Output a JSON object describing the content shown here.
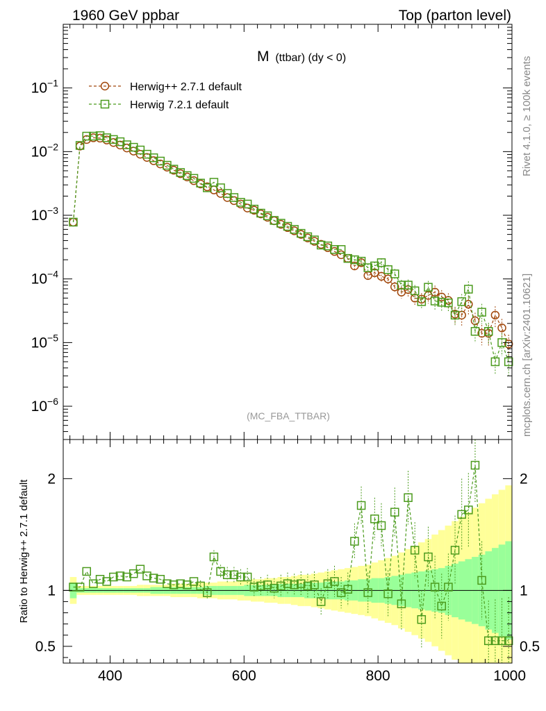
{
  "header": {
    "left": "1960 GeV ppbar",
    "right": "Top (parton level)"
  },
  "side": {
    "rivet": "Rivet 4.1.0, ≥ 100k events",
    "mcplots": "mcplots.cern.ch [arXiv:2401.10621]"
  },
  "chart_data": {
    "type": "line",
    "title_main": "M",
    "title_sub": "(ttbar) (dy < 0)",
    "analysis": "(MC_FBA_TTBAR)",
    "upper": {
      "yscale": "log",
      "ylim": [
        3e-07,
        1
      ],
      "xlim": [
        330,
        1000
      ],
      "ytick_labels": [
        {
          "base": "10",
          "exp": "−6",
          "value": 1e-06
        },
        {
          "base": "10",
          "exp": "−5",
          "value": 1e-05
        },
        {
          "base": "10",
          "exp": "−4",
          "value": 0.0001
        },
        {
          "base": "10",
          "exp": "−3",
          "value": 0.001
        },
        {
          "base": "10",
          "exp": "−2",
          "value": 0.01
        },
        {
          "base": "10",
          "exp": "−1",
          "value": 0.1
        }
      ],
      "series": [
        {
          "name": "Herwig++ 2.7.1 default",
          "color": "#a0460a",
          "marker": "circle",
          "x": [
            345,
            355,
            365,
            375,
            385,
            395,
            405,
            415,
            425,
            435,
            445,
            455,
            465,
            475,
            485,
            495,
            505,
            515,
            525,
            535,
            545,
            555,
            565,
            575,
            585,
            595,
            605,
            615,
            625,
            635,
            645,
            655,
            665,
            675,
            685,
            695,
            705,
            715,
            725,
            735,
            745,
            755,
            765,
            775,
            785,
            795,
            805,
            815,
            825,
            835,
            845,
            855,
            865,
            875,
            885,
            895,
            905,
            915,
            925,
            935,
            945,
            955,
            965,
            975,
            985,
            995
          ],
          "y": [
            0.00078,
            0.0122,
            0.0155,
            0.0165,
            0.0163,
            0.0152,
            0.0139,
            0.0127,
            0.0114,
            0.0102,
            0.0091,
            0.0081,
            0.0072,
            0.0064,
            0.0057,
            0.0051,
            0.0045,
            0.004,
            0.0035,
            0.0031,
            0.0028,
            0.0025,
            0.0022,
            0.0019,
            0.0017,
            0.0015,
            0.0013,
            0.0012,
            0.00105,
            0.00093,
            0.00082,
            0.00072,
            0.00064,
            0.00057,
            0.0005,
            0.00044,
            0.00039,
            0.00035,
            0.00031,
            0.00027,
            0.00024,
            0.00021,
            0.00016,
            0.00018,
            0.000113,
            0.000125,
            0.00011,
            0.0001,
            7.5e-05,
            6.2e-05,
            6.8e-05,
            5e-05,
            4.8e-05,
            5.5e-05,
            6.2e-05,
            5.2e-05,
            4.6e-05,
            2.8e-05,
            2.7e-05,
            4e-05,
            2.2e-05,
            1.4e-05,
            1.4e-05,
            2.7e-05,
            1.7e-05,
            9.5e-06
          ]
        },
        {
          "name": "Herwig 7.2.1 default",
          "color": "#4a9a1c",
          "marker": "square",
          "x": [
            345,
            355,
            365,
            375,
            385,
            395,
            405,
            415,
            425,
            435,
            445,
            455,
            465,
            475,
            485,
            495,
            505,
            515,
            525,
            535,
            545,
            555,
            565,
            575,
            585,
            595,
            605,
            615,
            625,
            635,
            645,
            655,
            665,
            675,
            685,
            695,
            705,
            715,
            725,
            735,
            745,
            755,
            765,
            775,
            785,
            795,
            805,
            815,
            825,
            835,
            845,
            855,
            865,
            875,
            885,
            895,
            905,
            915,
            925,
            935,
            945,
            955,
            965,
            975,
            985,
            995
          ],
          "y": [
            0.00078,
            0.0125,
            0.0175,
            0.0175,
            0.0178,
            0.0165,
            0.0155,
            0.0143,
            0.0128,
            0.0117,
            0.0106,
            0.0091,
            0.008,
            0.0071,
            0.0061,
            0.0053,
            0.0047,
            0.0042,
            0.0038,
            0.0032,
            0.0027,
            0.0033,
            0.0027,
            0.0022,
            0.0019,
            0.0016,
            0.0015,
            0.00125,
            0.00108,
            0.00098,
            0.00083,
            0.00075,
            0.00067,
            0.0006,
            0.00052,
            0.00046,
            0.00041,
            0.00034,
            0.00033,
            0.00029,
            0.00029,
            0.00021,
            0.0002,
            0.00019,
            0.00015,
            0.00016,
            0.00018,
            0.00014,
            0.00012,
            8e-05,
            8e-05,
            6.5e-05,
            4.4e-05,
            7.4e-05,
            4.5e-05,
            4.3e-05,
            4.2e-05,
            2.7e-05,
            4.4e-05,
            6.9e-05,
            1.5e-05,
            3e-05,
            1.5e-05,
            5e-06,
            1e-05,
            5e-06
          ]
        }
      ]
    },
    "lower": {
      "ylabel": "Ratio to Herwig++ 2.7.1 default",
      "ylim": [
        0.35,
        2.35
      ],
      "xticks": [
        400,
        600,
        800,
        1000
      ],
      "xtick_labels": [
        "400",
        "600",
        "800",
        "1000"
      ],
      "ytick_labels_left": [
        {
          "label": "0.5",
          "value": 0.5
        },
        {
          "label": "1",
          "value": 1
        },
        {
          "label": "2",
          "value": 2
        }
      ],
      "ytick_labels_right": [
        {
          "label": "0.5",
          "value": 0.5
        },
        {
          "label": "1",
          "value": 1
        },
        {
          "label": "2",
          "value": 2
        }
      ],
      "ratio": [
        1.03,
        1.03,
        1.17,
        1.06,
        1.1,
        1.08,
        1.12,
        1.13,
        1.12,
        1.15,
        1.19,
        1.13,
        1.11,
        1.1,
        1.06,
        1.05,
        1.06,
        1.05,
        1.08,
        1.04,
        0.98,
        1.3,
        1.17,
        1.14,
        1.14,
        1.12,
        1.12,
        1.03,
        1.04,
        1.05,
        1.02,
        1.04,
        1.06,
        1.05,
        1.06,
        1.04,
        1.05,
        0.9,
        1.06,
        1.08,
        0.98,
        1.01,
        1.44,
        1.76,
        0.98,
        1.64,
        1.58,
        0.97,
        1.7,
        0.88,
        1.83,
        1.36,
        0.74,
        1.3,
        1.03,
        0.86,
        1.03,
        1.36,
        1.68,
        1.72,
        2.12,
        1.09,
        0.55,
        0.55,
        0.55,
        0.55
      ],
      "ratio_err": [
        0.02,
        0.02,
        0.03,
        0.03,
        0.03,
        0.03,
        0.03,
        0.03,
        0.03,
        0.03,
        0.04,
        0.04,
        0.04,
        0.04,
        0.04,
        0.04,
        0.05,
        0.05,
        0.05,
        0.05,
        0.06,
        0.06,
        0.06,
        0.07,
        0.07,
        0.07,
        0.08,
        0.08,
        0.08,
        0.09,
        0.09,
        0.1,
        0.1,
        0.1,
        0.11,
        0.11,
        0.12,
        0.12,
        0.13,
        0.14,
        0.14,
        0.15,
        0.16,
        0.17,
        0.18,
        0.19,
        0.2,
        0.21,
        0.22,
        0.23,
        0.24,
        0.25,
        0.26,
        0.27,
        0.28,
        0.29,
        0.3,
        0.31,
        0.32,
        0.33,
        0.34,
        0.35,
        0.36,
        0.37,
        0.38,
        0.39
      ],
      "band_green": [
        0.07,
        0.02,
        0.02,
        0.02,
        0.02,
        0.02,
        0.02,
        0.02,
        0.02,
        0.02,
        0.02,
        0.02,
        0.03,
        0.03,
        0.03,
        0.03,
        0.03,
        0.03,
        0.03,
        0.03,
        0.04,
        0.04,
        0.04,
        0.04,
        0.04,
        0.04,
        0.05,
        0.05,
        0.05,
        0.05,
        0.05,
        0.06,
        0.06,
        0.06,
        0.06,
        0.07,
        0.07,
        0.07,
        0.08,
        0.08,
        0.08,
        0.09,
        0.09,
        0.1,
        0.1,
        0.11,
        0.11,
        0.12,
        0.13,
        0.14,
        0.15,
        0.16,
        0.17,
        0.18,
        0.19,
        0.2,
        0.22,
        0.24,
        0.26,
        0.28,
        0.3,
        0.32,
        0.35,
        0.38,
        0.41,
        0.44
      ],
      "band_yellow": [
        0.12,
        0.04,
        0.04,
        0.04,
        0.04,
        0.04,
        0.04,
        0.04,
        0.04,
        0.04,
        0.05,
        0.05,
        0.05,
        0.05,
        0.05,
        0.06,
        0.06,
        0.06,
        0.06,
        0.07,
        0.07,
        0.07,
        0.08,
        0.08,
        0.08,
        0.09,
        0.09,
        0.1,
        0.1,
        0.11,
        0.11,
        0.12,
        0.12,
        0.13,
        0.14,
        0.14,
        0.15,
        0.16,
        0.17,
        0.18,
        0.19,
        0.2,
        0.21,
        0.22,
        0.23,
        0.25,
        0.27,
        0.29,
        0.31,
        0.34,
        0.37,
        0.4,
        0.43,
        0.46,
        0.5,
        0.54,
        0.58,
        0.62,
        0.66,
        0.7,
        0.74,
        0.78,
        0.82,
        0.86,
        0.9,
        0.94
      ]
    }
  }
}
